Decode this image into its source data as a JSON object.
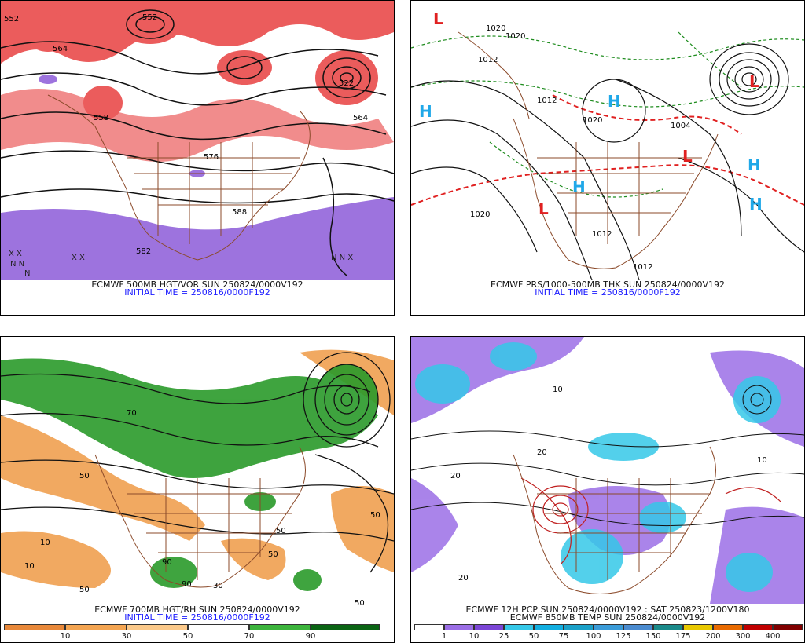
{
  "panels": {
    "tl": {
      "caption": "ECMWF 500MB HGT/VOR SUN 250824/0000V192",
      "initial": "INITIAL TIME = 250816/0000F192",
      "labels": [
        "552",
        "564",
        "576",
        "588",
        "564",
        "552",
        "522",
        "558",
        "582",
        "588",
        "N",
        "N",
        "N",
        "N",
        "X",
        "X",
        "X"
      ]
    },
    "tr": {
      "caption": "ECMWF PRS/1000-500MB THK SUN 250824/0000V192",
      "initial": "INITIAL TIME = 250816/0000F192",
      "labels": [
        "1020",
        "1020",
        "1012",
        "1012",
        "1004",
        "1020",
        "1012",
        "1012",
        "1012"
      ],
      "highs_lows": [
        "L",
        "L",
        "L",
        "L",
        "H",
        "H",
        "H",
        "H",
        "H"
      ]
    },
    "bl": {
      "caption": "ECMWF 700MB HGT/RH SUN 250824/0000V192",
      "initial": "INITIAL TIME = 250816/0000F192",
      "labels": [
        "50",
        "10",
        "50",
        "90",
        "70",
        "50",
        "10",
        "30",
        "50",
        "90",
        "50",
        "50"
      ],
      "colorbar": {
        "ticks": [
          "10",
          "30",
          "50",
          "70",
          "90"
        ],
        "colors": [
          "#e8883a",
          "#f4a552",
          "#fbc98a",
          "#ffffff",
          "#ffffff",
          "#3cb43c",
          "#1e8c1e",
          "#0a6414"
        ]
      }
    },
    "br": {
      "caption": "ECMWF 12H PCP SUN 250824/0000V192 : SAT 250823/1200V180",
      "caption2": "ECMWF 850MB TEMP SUN 250824/0000V192",
      "labels": [
        "20",
        "20",
        "10",
        "20",
        "10"
      ],
      "colorbar": {
        "ticks": [
          "1",
          "10",
          "25",
          "50",
          "75",
          "100",
          "125",
          "150",
          "175",
          "200",
          "300",
          "400"
        ],
        "colors": [
          "#ffffff",
          "#9b6ee6",
          "#7b46d6",
          "#35c8e8",
          "#12aee0",
          "#1aa0c8",
          "#3a9bd8",
          "#4a8bd0",
          "#1a8a8a",
          "#e8c800",
          "#e86a00",
          "#c00000",
          "#800000"
        ]
      }
    }
  },
  "colors": {
    "vort": "#e03030",
    "coast": "#8b4a2a",
    "rh_dry": "#f0a050",
    "rh_moist": "#2a9a2a",
    "precip": "#35c8e8"
  }
}
